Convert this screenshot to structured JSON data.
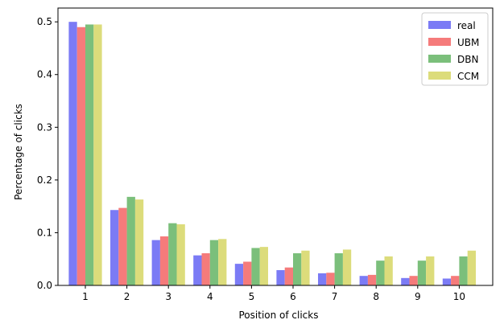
{
  "chart_data": {
    "type": "bar",
    "title": "",
    "xlabel": "Position of clicks",
    "ylabel": "Percentage of clicks",
    "categories": [
      "1",
      "2",
      "3",
      "4",
      "5",
      "6",
      "7",
      "8",
      "9",
      "10"
    ],
    "ylim": [
      0,
      0.5
    ],
    "yticks": [
      "0.0",
      "0.1",
      "0.2",
      "0.3",
      "0.4",
      "0.5"
    ],
    "legend_position": "top-right",
    "grid": false,
    "series": [
      {
        "name": "real",
        "color": "#7b7bf5",
        "values": [
          0.5,
          0.143,
          0.086,
          0.057,
          0.041,
          0.029,
          0.023,
          0.018,
          0.014,
          0.013
        ]
      },
      {
        "name": "UBM",
        "color": "#f57b7b",
        "values": [
          0.49,
          0.147,
          0.093,
          0.061,
          0.045,
          0.034,
          0.024,
          0.02,
          0.018,
          0.018
        ]
      },
      {
        "name": "DBN",
        "color": "#7bbf7b",
        "values": [
          0.495,
          0.168,
          0.118,
          0.086,
          0.071,
          0.061,
          0.061,
          0.047,
          0.047,
          0.055
        ]
      },
      {
        "name": "CCM",
        "color": "#dcdc7b",
        "values": [
          0.495,
          0.163,
          0.116,
          0.088,
          0.073,
          0.066,
          0.068,
          0.055,
          0.055,
          0.066
        ]
      }
    ]
  }
}
